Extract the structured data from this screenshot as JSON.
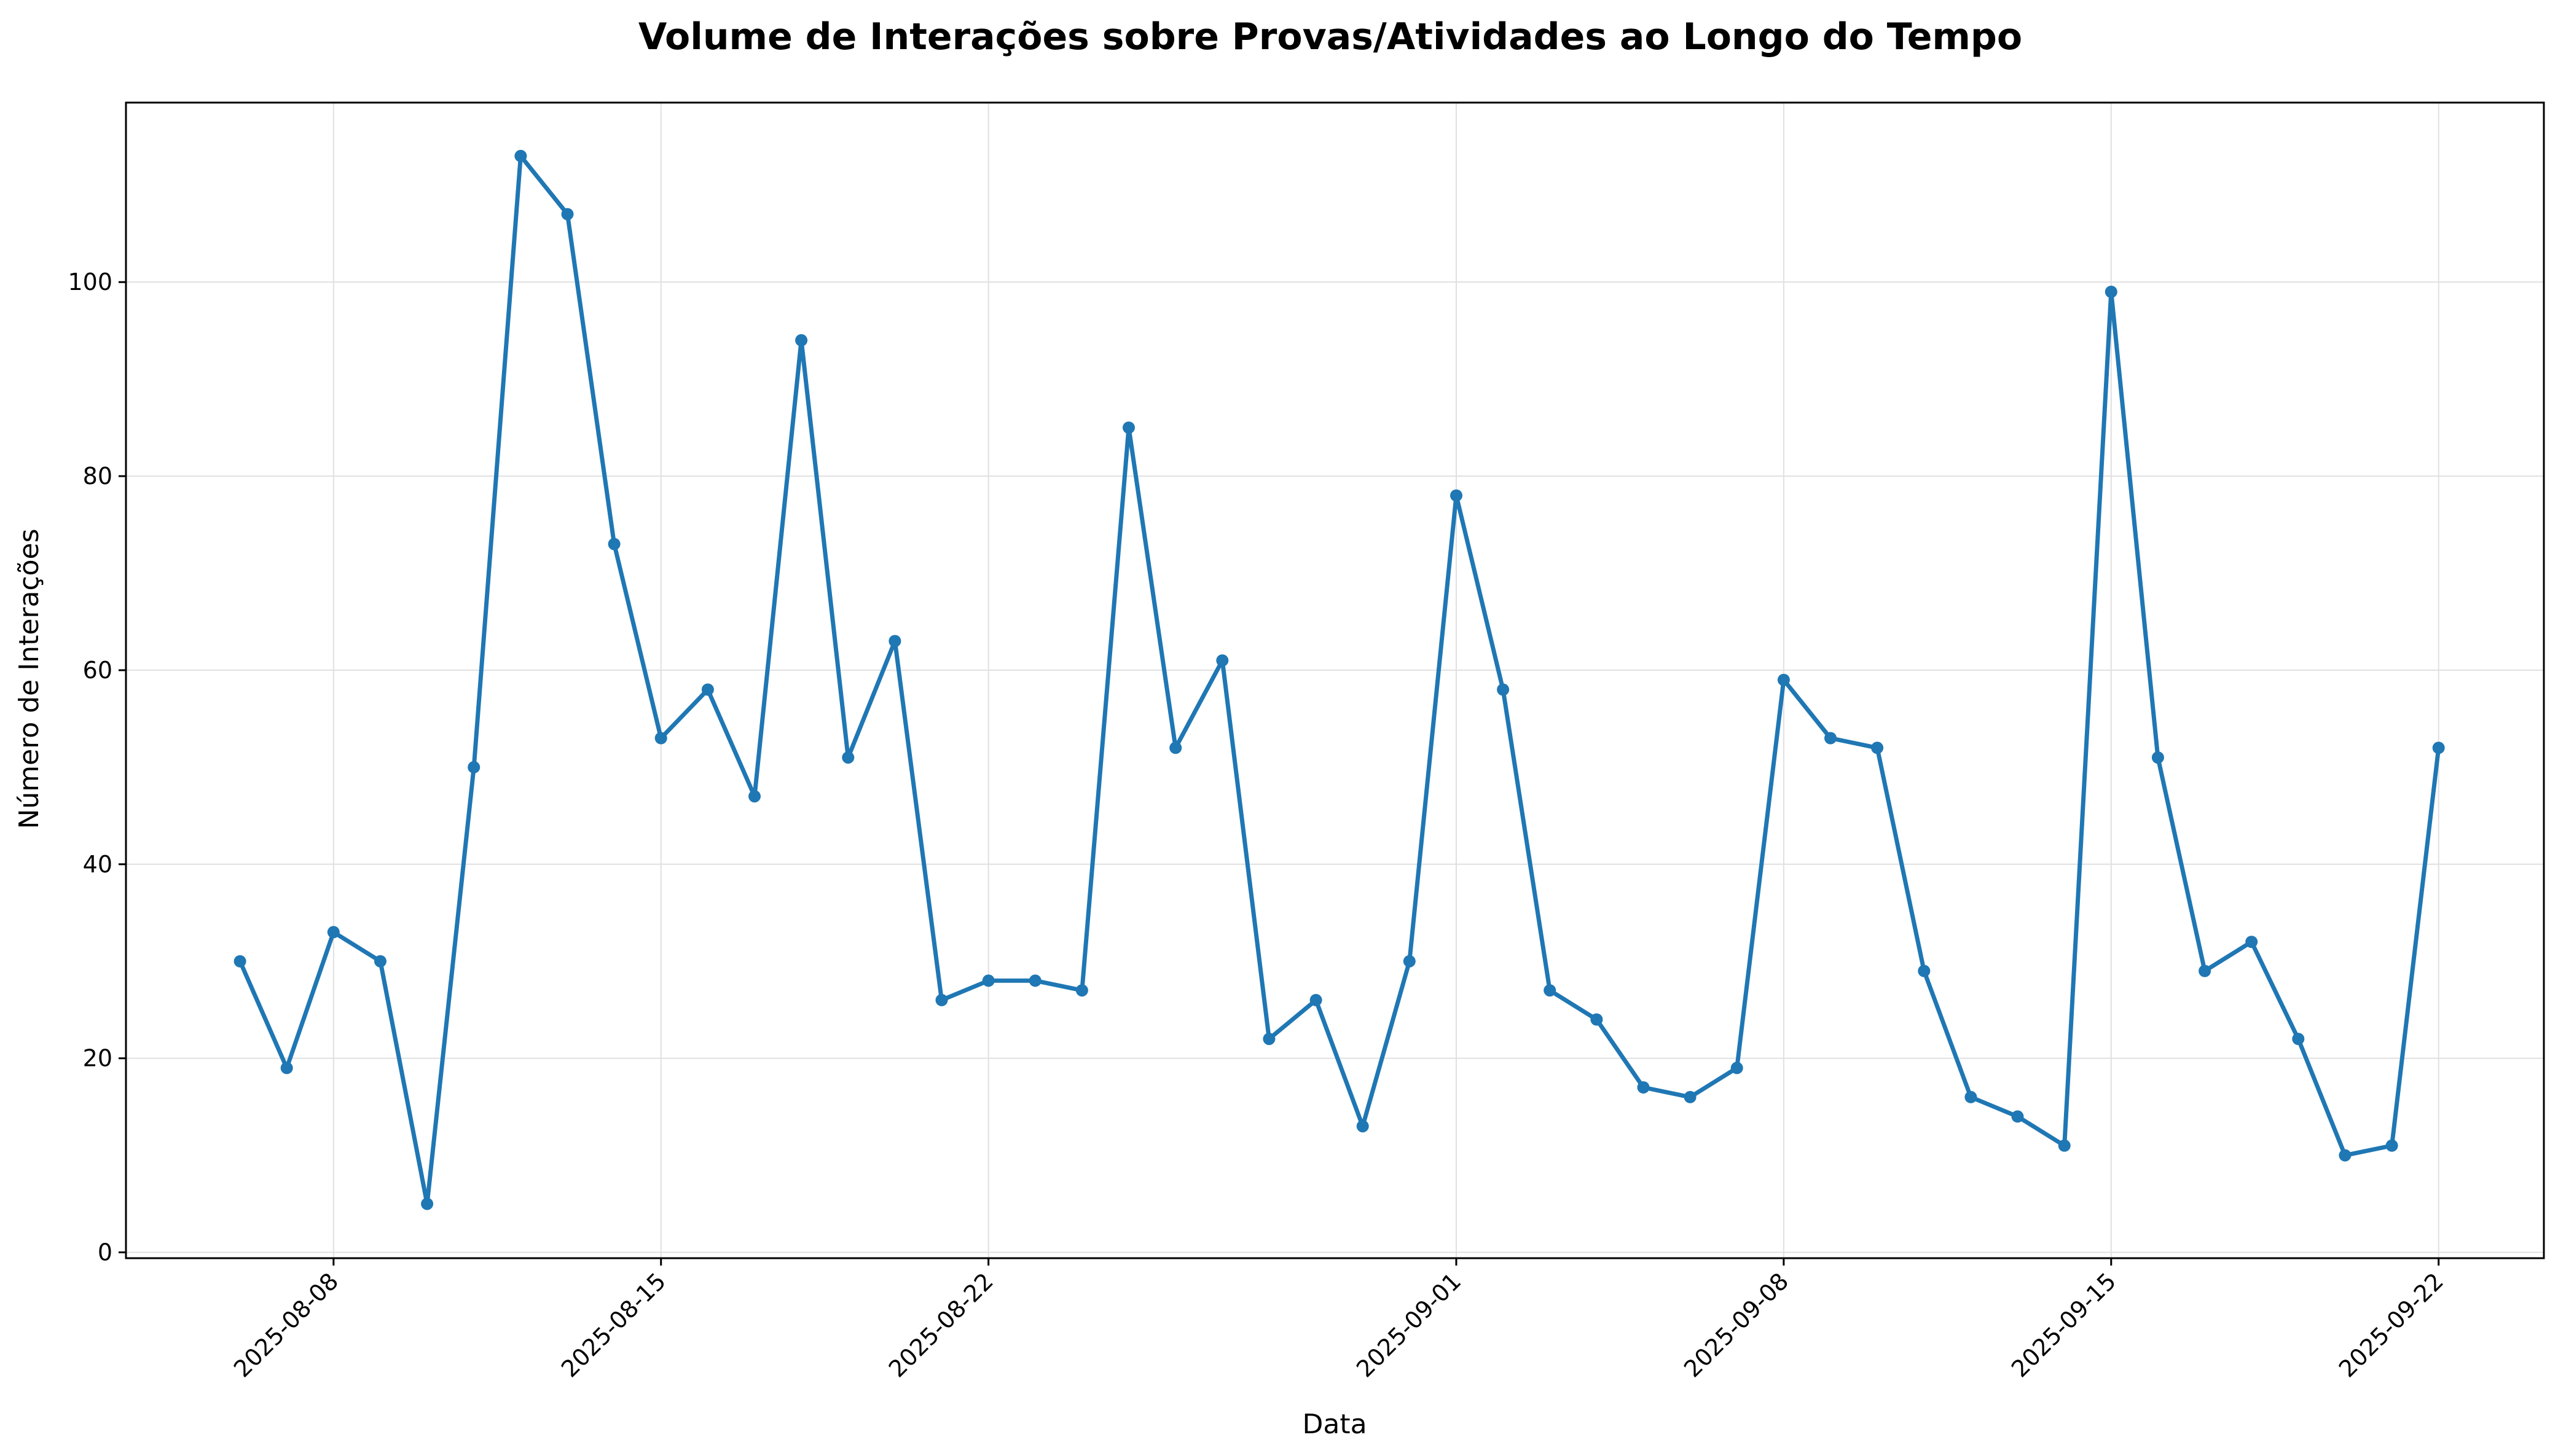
{
  "chart_data": {
    "type": "line",
    "title": "Volume de Interações sobre Provas/Atividades ao Longo do Tempo",
    "xlabel": "Data",
    "ylabel": "Número de Interações",
    "ylim": [
      -0.6,
      118.5
    ],
    "xlim": [
      "2025-08-03T13:30",
      "2025-09-24T06:00"
    ],
    "grid": true,
    "marker": "circle",
    "colors": {
      "line": "#1f77b4",
      "grid": "#e0e0e0",
      "axis": "#000000"
    },
    "x_ticks": [
      "2025-08-08",
      "2025-08-15",
      "2025-08-22",
      "2025-09-01",
      "2025-09-08",
      "2025-09-15",
      "2025-09-22"
    ],
    "y_ticks": [
      0,
      20,
      40,
      60,
      80,
      100
    ],
    "series": [
      {
        "x": [
          "2025-08-06",
          "2025-08-07",
          "2025-08-08",
          "2025-08-09",
          "2025-08-10",
          "2025-08-11",
          "2025-08-12",
          "2025-08-13",
          "2025-08-14",
          "2025-08-15",
          "2025-08-16",
          "2025-08-17",
          "2025-08-18",
          "2025-08-19",
          "2025-08-20",
          "2025-08-21",
          "2025-08-22",
          "2025-08-23",
          "2025-08-24",
          "2025-08-25",
          "2025-08-26",
          "2025-08-27",
          "2025-08-28",
          "2025-08-29",
          "2025-08-30",
          "2025-08-31",
          "2025-09-01",
          "2025-09-02",
          "2025-09-03",
          "2025-09-04",
          "2025-09-05",
          "2025-09-06",
          "2025-09-07",
          "2025-09-08",
          "2025-09-09",
          "2025-09-10",
          "2025-09-11",
          "2025-09-12",
          "2025-09-13",
          "2025-09-14",
          "2025-09-15",
          "2025-09-16",
          "2025-09-17",
          "2025-09-18",
          "2025-09-19",
          "2025-09-20",
          "2025-09-21",
          "2025-09-22"
        ],
        "values": [
          30,
          19,
          33,
          30,
          5,
          50,
          113,
          107,
          73,
          53,
          58,
          47,
          94,
          51,
          63,
          26,
          28,
          28,
          27,
          85,
          52,
          61,
          22,
          26,
          13,
          30,
          78,
          58,
          27,
          24,
          17,
          16,
          19,
          59,
          53,
          52,
          29,
          16,
          14,
          11,
          99,
          51,
          29,
          32,
          22,
          10,
          11,
          52
        ]
      }
    ]
  }
}
